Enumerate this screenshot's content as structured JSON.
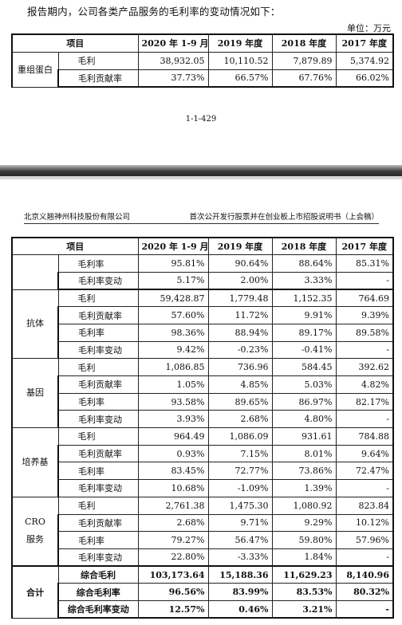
{
  "intro_text": "报告期内，公司各类产品服务的毛利率的变动情况如下：",
  "unit_label": "单位：万元",
  "columns": [
    "项目",
    "2020 年 1-9 月",
    "2019 年度",
    "2018 年度",
    "2017 年度"
  ],
  "top_table": {
    "group": "重组蛋白",
    "rows": [
      {
        "item": "毛利",
        "values": [
          "38,932.05",
          "10,110.52",
          "7,879.89",
          "5,374.92"
        ]
      },
      {
        "item": "毛利贡献率",
        "values": [
          "37.73%",
          "66.57%",
          "67.76%",
          "66.02%"
        ]
      }
    ]
  },
  "page_number": "1-1-429",
  "header_left": "北京义翘神州科技股份有限公司",
  "header_right": "首次公开发行股票并在创业板上市招股说明书（上会稿）",
  "bottom_table": {
    "continued_rows": [
      {
        "item": "毛利率",
        "values": [
          "95.81%",
          "90.64%",
          "88.64%",
          "85.31%"
        ]
      },
      {
        "item": "毛利率变动",
        "values": [
          "5.17%",
          "2.00%",
          "3.33%",
          "-"
        ]
      }
    ],
    "groups": [
      {
        "name": "抗体",
        "rows": [
          {
            "item": "毛利",
            "values": [
              "59,428.87",
              "1,779.48",
              "1,152.35",
              "764.69"
            ]
          },
          {
            "item": "毛利贡献率",
            "values": [
              "57.60%",
              "11.72%",
              "9.91%",
              "9.39%"
            ]
          },
          {
            "item": "毛利率",
            "values": [
              "98.36%",
              "88.94%",
              "89.17%",
              "89.58%"
            ]
          },
          {
            "item": "毛利率变动",
            "values": [
              "9.42%",
              "-0.23%",
              "-0.41%",
              "-"
            ]
          }
        ]
      },
      {
        "name": "基因",
        "rows": [
          {
            "item": "毛利",
            "values": [
              "1,086.85",
              "736.96",
              "584.45",
              "392.62"
            ]
          },
          {
            "item": "毛利贡献率",
            "values": [
              "1.05%",
              "4.85%",
              "5.03%",
              "4.82%"
            ]
          },
          {
            "item": "毛利率",
            "values": [
              "93.58%",
              "89.65%",
              "86.97%",
              "82.17%"
            ]
          },
          {
            "item": "毛利率变动",
            "values": [
              "3.93%",
              "2.68%",
              "4.80%",
              "-"
            ]
          }
        ]
      },
      {
        "name": "培养基",
        "rows": [
          {
            "item": "毛利",
            "values": [
              "964.49",
              "1,086.09",
              "931.61",
              "784.88"
            ]
          },
          {
            "item": "毛利贡献率",
            "values": [
              "0.93%",
              "7.15%",
              "8.01%",
              "9.64%"
            ]
          },
          {
            "item": "毛利率",
            "values": [
              "83.45%",
              "72.77%",
              "73.86%",
              "72.47%"
            ]
          },
          {
            "item": "毛利率变动",
            "values": [
              "10.68%",
              "-1.09%",
              "1.39%",
              "-"
            ]
          }
        ]
      },
      {
        "name": "CRO\n服务",
        "rows": [
          {
            "item": "毛利",
            "values": [
              "2,761.38",
              "1,475.30",
              "1,080.92",
              "823.84"
            ]
          },
          {
            "item": "毛利贡献率",
            "values": [
              "2.68%",
              "9.71%",
              "9.29%",
              "10.12%"
            ]
          },
          {
            "item": "毛利率",
            "values": [
              "79.27%",
              "56.47%",
              "59.80%",
              "57.96%"
            ]
          },
          {
            "item": "毛利率变动",
            "values": [
              "22.80%",
              "-3.33%",
              "1.84%",
              "-"
            ]
          }
        ]
      }
    ],
    "total": {
      "name": "合计",
      "rows": [
        {
          "item": "综合毛利",
          "values": [
            "103,173.64",
            "15,188.36",
            "11,629.23",
            "8,140.96"
          ]
        },
        {
          "item": "综合毛利率",
          "values": [
            "96.56%",
            "83.99%",
            "83.53%",
            "80.32%"
          ]
        },
        {
          "item": "综合毛利率变动",
          "values": [
            "12.57%",
            "0.46%",
            "3.21%",
            "-"
          ]
        }
      ]
    }
  }
}
